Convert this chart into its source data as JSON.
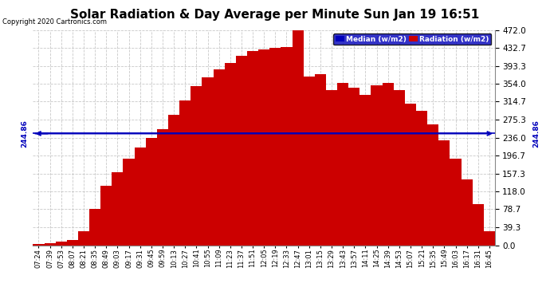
{
  "title": "Solar Radiation & Day Average per Minute Sun Jan 19 16:51",
  "copyright": "Copyright 2020 Cartronics.com",
  "median_value": 244.86,
  "y_min": 0.0,
  "y_max": 472.0,
  "y_ticks": [
    0.0,
    39.3,
    78.7,
    118.0,
    157.3,
    196.7,
    236.0,
    275.3,
    314.7,
    354.0,
    393.3,
    432.7,
    472.0
  ],
  "background_color": "#ffffff",
  "fill_color": "#cc0000",
  "median_color": "#0000bb",
  "grid_color": "#bbbbbb",
  "x_labels": [
    "07:24",
    "07:39",
    "07:53",
    "08:07",
    "08:21",
    "08:35",
    "08:49",
    "09:03",
    "09:17",
    "09:31",
    "09:45",
    "09:59",
    "10:13",
    "10:27",
    "10:41",
    "10:55",
    "11:09",
    "11:23",
    "11:37",
    "11:51",
    "12:05",
    "12:19",
    "12:33",
    "12:47",
    "13:01",
    "13:15",
    "13:29",
    "13:43",
    "13:57",
    "14:11",
    "14:25",
    "14:39",
    "14:53",
    "15:07",
    "15:21",
    "15:35",
    "15:49",
    "16:03",
    "16:17",
    "16:31",
    "16:45"
  ],
  "legend_median_label": "Median (w/m2)",
  "legend_radiation_label": "Radiation (w/m2)",
  "radiation_values": [
    2,
    5,
    8,
    12,
    30,
    80,
    130,
    160,
    190,
    215,
    235,
    255,
    285,
    318,
    348,
    368,
    385,
    400,
    415,
    425,
    430,
    432,
    435,
    472,
    370,
    375,
    340,
    355,
    345,
    330,
    350,
    355,
    340,
    310,
    295,
    265,
    230,
    190,
    145,
    90,
    30
  ]
}
